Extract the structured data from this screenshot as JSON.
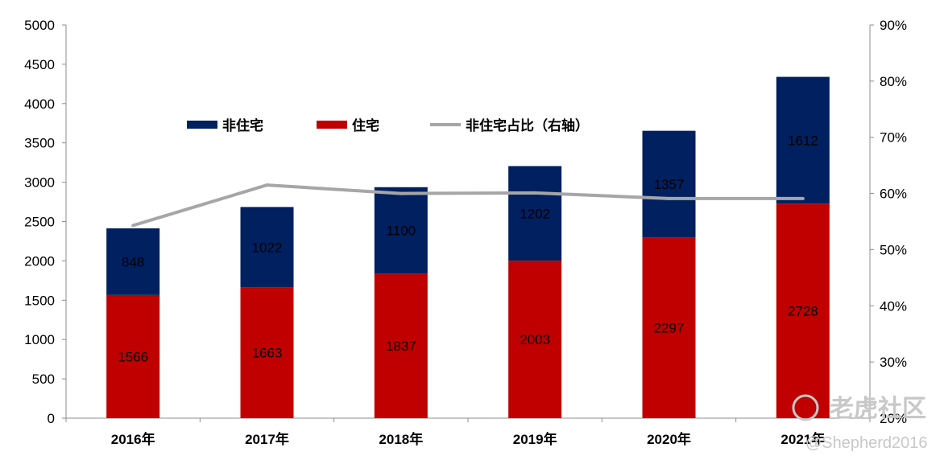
{
  "chart_data": {
    "type": "bar",
    "stacked": true,
    "categories": [
      "2016年",
      "2017年",
      "2018年",
      "2019年",
      "2020年",
      "2021年"
    ],
    "series": [
      {
        "name": "住宅",
        "color": "#c00000",
        "axis": "left",
        "values": [
          1566,
          1663,
          1837,
          2003,
          2297,
          2728
        ]
      },
      {
        "name": "非住宅",
        "color": "#002060",
        "axis": "left",
        "values": [
          848,
          1022,
          1100,
          1202,
          1357,
          1612
        ]
      }
    ],
    "line_series": {
      "name": "非住宅占比（右轴）",
      "color": "#a6a6a6",
      "axis": "right",
      "values": [
        54.3,
        61.5,
        60.0,
        60.1,
        59.1,
        59.1
      ]
    },
    "left_axis": {
      "ylim": [
        0,
        5000
      ],
      "ticks": [
        "0",
        "500",
        "1000",
        "1500",
        "2000",
        "2500",
        "3000",
        "3500",
        "4000",
        "4500",
        "5000"
      ]
    },
    "right_axis": {
      "ylim": [
        20,
        90
      ],
      "ticks": [
        "20%",
        "30%",
        "40%",
        "50%",
        "60%",
        "70%",
        "80%",
        "90%"
      ]
    },
    "legend": [
      "非住宅",
      "住宅",
      "非住宅占比（右轴）"
    ],
    "legend_position": "top-left"
  },
  "watermark": {
    "logo_text": "老虎社区",
    "handle": "@Shepherd2016"
  }
}
